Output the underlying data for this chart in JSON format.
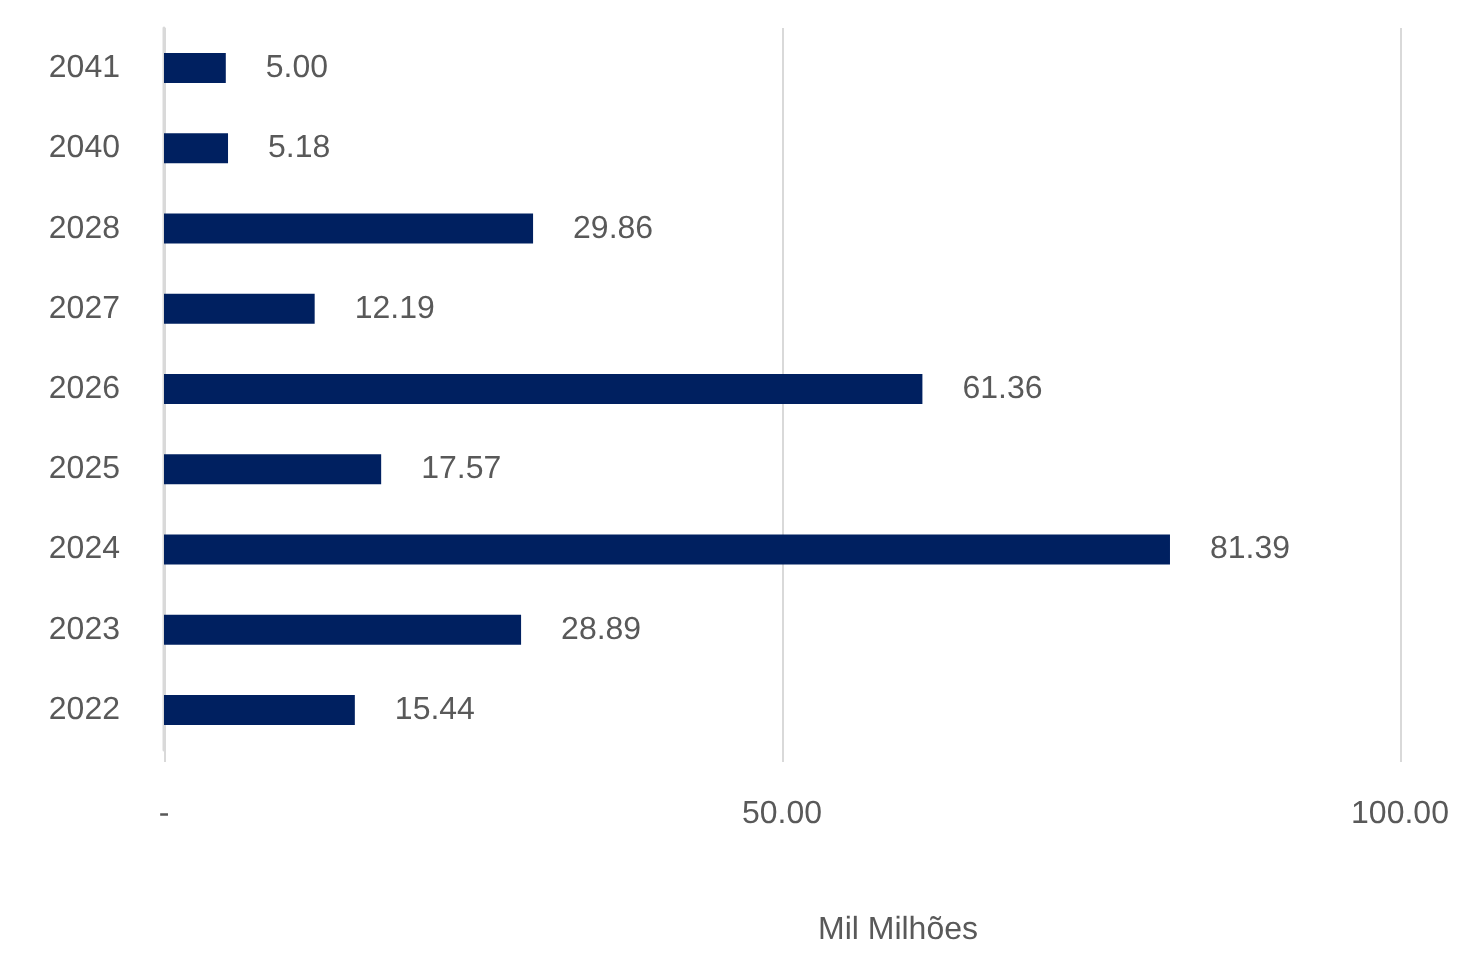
{
  "chart_data": {
    "type": "bar",
    "orientation": "horizontal",
    "categories": [
      "2041",
      "2040",
      "2028",
      "2027",
      "2026",
      "2025",
      "2024",
      "2023",
      "2022"
    ],
    "values": [
      5.0,
      5.18,
      29.86,
      12.19,
      61.36,
      17.57,
      81.39,
      28.89,
      15.44
    ],
    "value_labels": [
      "5.00",
      "5.18",
      "29.86",
      "12.19",
      "61.36",
      "17.57",
      "81.39",
      "28.89",
      "15.44"
    ],
    "color": "#002060",
    "xlabel": "Mil Milhões",
    "xlim": [
      0,
      100
    ],
    "xticks": [
      {
        "value": 0,
        "label": "-"
      },
      {
        "value": 50,
        "label": "50.00"
      },
      {
        "value": 100,
        "label": "100.00"
      }
    ],
    "grid": "x"
  }
}
